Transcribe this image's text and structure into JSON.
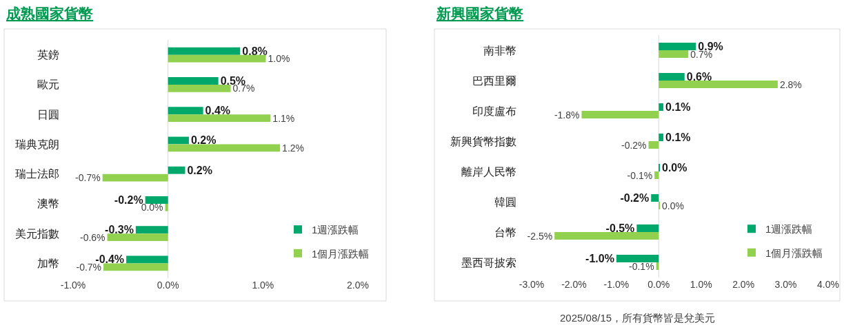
{
  "chart_data": [
    {
      "type": "bar",
      "orientation": "horizontal",
      "title": "成熟國家貨幣",
      "categories": [
        "英鎊",
        "歐元",
        "日圓",
        "瑞典克朗",
        "瑞士法郎",
        "澳幣",
        "美元指數",
        "加幣"
      ],
      "series": [
        {
          "name": "1週漲跌幅",
          "color": "#00a86b",
          "values": [
            0.76,
            0.53,
            0.37,
            0.22,
            0.18,
            -0.24,
            -0.34,
            -0.44
          ],
          "value_labels": [
            "0.8%",
            "0.5%",
            "0.4%",
            "0.2%",
            "0.2%",
            "-0.2%",
            "-0.3%",
            "-0.4%"
          ]
        },
        {
          "name": "1個月漲跌幅",
          "color": "#92d050",
          "values": [
            1.03,
            0.66,
            1.08,
            1.18,
            -0.69,
            -0.03,
            -0.64,
            -0.68
          ],
          "value_labels": [
            "1.0%",
            "0.7%",
            "1.1%",
            "1.2%",
            "-0.7%",
            "0.0%",
            "-0.6%",
            "-0.7%"
          ]
        }
      ],
      "xlim": [
        -1,
        2
      ],
      "xticks": [
        {
          "value": -1,
          "label": "-1.0%"
        },
        {
          "value": 0,
          "label": "0.0%"
        },
        {
          "value": 1,
          "label": "1.0%"
        },
        {
          "value": 2,
          "label": "2.0%"
        }
      ],
      "grid": false,
      "legend": "bottom right",
      "ref_lines": [
        {
          "axis": "x",
          "value": 0,
          "color": "#d9d9d9"
        }
      ]
    },
    {
      "type": "bar",
      "orientation": "horizontal",
      "title": "新興國家貨幣",
      "categories": [
        "南非幣",
        "巴西里爾",
        "印度盧布",
        "新興貨幣指數",
        "離岸人民幣",
        "韓圓",
        "台幣",
        "墨西哥披索"
      ],
      "series": [
        {
          "name": "1週漲跌幅",
          "color": "#00a86b",
          "values": [
            0.88,
            0.61,
            0.11,
            0.11,
            0.02,
            -0.18,
            -0.52,
            -1.0
          ],
          "value_labels": [
            "0.9%",
            "0.6%",
            "0.1%",
            "0.1%",
            "0.0%",
            "-0.2%",
            "-0.5%",
            "-1.0%"
          ]
        },
        {
          "name": "1個月漲跌幅",
          "color": "#92d050",
          "values": [
            0.7,
            2.81,
            -1.82,
            -0.24,
            -0.1,
            0.02,
            -2.46,
            -0.06
          ],
          "value_labels": [
            "0.7%",
            "2.8%",
            "-1.8%",
            "-0.2%",
            "-0.1%",
            "0.0%",
            "-2.5%",
            "-0.1%"
          ]
        }
      ],
      "xlim": [
        -3,
        4
      ],
      "xticks": [
        {
          "value": -3,
          "label": "-3.0%"
        },
        {
          "value": -2,
          "label": "-2.0%"
        },
        {
          "value": -1,
          "label": "-1.0%"
        },
        {
          "value": 0,
          "label": "0.0%"
        },
        {
          "value": 1,
          "label": "1.0%"
        },
        {
          "value": 2,
          "label": "2.0%"
        },
        {
          "value": 3,
          "label": "3.0%"
        },
        {
          "value": 4,
          "label": "4.0%"
        }
      ],
      "grid": false,
      "legend": "bottom right",
      "ref_lines": [
        {
          "axis": "x",
          "value": 0,
          "color": "#d9d9d9"
        }
      ],
      "annotations": [
        "2025/08/15，所有貨幣皆是兌美元"
      ]
    }
  ]
}
